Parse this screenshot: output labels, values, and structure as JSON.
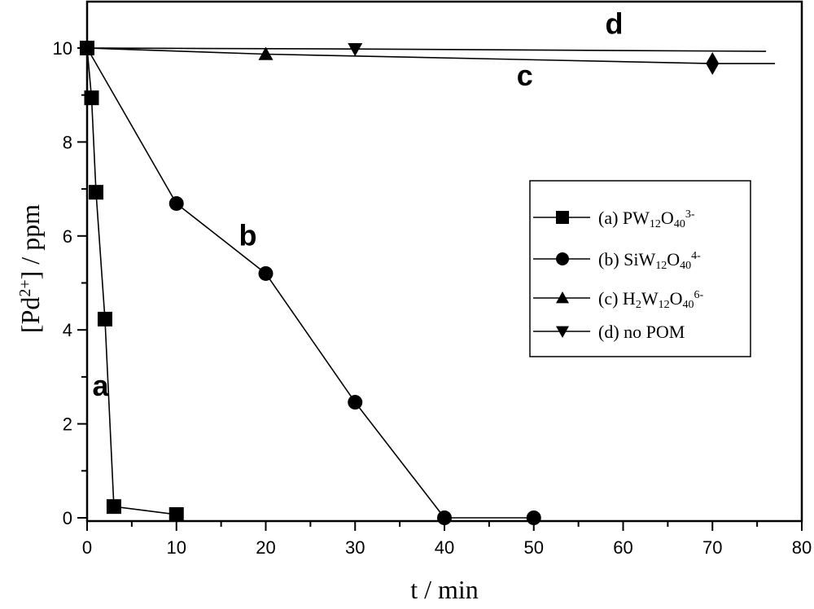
{
  "chart_data": {
    "type": "line",
    "title": "",
    "xlabel": "t / min",
    "ylabel_parts": [
      {
        "t": "[Pd"
      },
      {
        "sup": "2+"
      },
      {
        "t": "] / ppm"
      }
    ],
    "xlim": [
      0,
      80
    ],
    "ylim": [
      0,
      10
    ],
    "xticks": [
      0,
      10,
      20,
      30,
      40,
      50,
      60,
      70,
      80
    ],
    "yticks": [
      0,
      2,
      4,
      6,
      8,
      10
    ],
    "grid": false,
    "legend_position": "center-right",
    "series": [
      {
        "name": "(a) PW12O40 3-",
        "marker": "square",
        "label": "a",
        "x": [
          0,
          0.5,
          1,
          2,
          3,
          10
        ],
        "y": [
          10,
          8.94,
          6.93,
          4.23,
          0.24,
          0.07
        ],
        "legend_parts": [
          {
            "t": "(a) PW"
          },
          {
            "sub": "12"
          },
          {
            "t": "O"
          },
          {
            "sub": "40"
          },
          {
            "sup": "3-"
          }
        ]
      },
      {
        "name": "(b) SiW12O40 4-",
        "marker": "circle",
        "label": "b",
        "x": [
          0,
          10,
          20,
          30,
          40,
          50
        ],
        "y": [
          10,
          6.69,
          5.2,
          2.46,
          0,
          0
        ],
        "legend_parts": [
          {
            "t": "(b) SiW"
          },
          {
            "sub": "12"
          },
          {
            "t": "O"
          },
          {
            "sub": "40"
          },
          {
            "sup": "4-"
          }
        ]
      },
      {
        "name": "(c) H2W12O40 6-",
        "marker": "triangle-up",
        "label": "c",
        "x": [
          0,
          20,
          70,
          77
        ],
        "y": [
          10,
          9.87,
          9.67,
          9.67
        ],
        "markers_at": [
          {
            "x": 0,
            "y": 10,
            "m": "triangle-up"
          },
          {
            "x": 20,
            "y": 9.87,
            "m": "triangle-up"
          },
          {
            "x": 70,
            "y": 9.67,
            "m": "diamond"
          }
        ],
        "legend_parts": [
          {
            "t": "(c) H"
          },
          {
            "sub": "2"
          },
          {
            "t": "W"
          },
          {
            "sub": "12"
          },
          {
            "t": "O"
          },
          {
            "sub": "40"
          },
          {
            "sup": "6-"
          }
        ]
      },
      {
        "name": "(d) no POM",
        "marker": "triangle-down",
        "label": "d",
        "x": [
          0,
          30,
          76
        ],
        "y": [
          10,
          9.98,
          9.93
        ],
        "markers_at": [
          {
            "x": 0,
            "y": 10,
            "m": "triangle-down"
          },
          {
            "x": 30,
            "y": 9.98,
            "m": "triangle-down"
          }
        ],
        "legend_parts": [
          {
            "t": "(d) no POM"
          }
        ]
      }
    ],
    "annotations": [
      {
        "text": "a",
        "x": 1.5,
        "y": 2.6
      },
      {
        "text": "b",
        "x": 18,
        "y": 5.8
      },
      {
        "text": "c",
        "x": 49,
        "y": 9.2
      },
      {
        "text": "d",
        "x": 59,
        "y": 10.3
      }
    ]
  }
}
